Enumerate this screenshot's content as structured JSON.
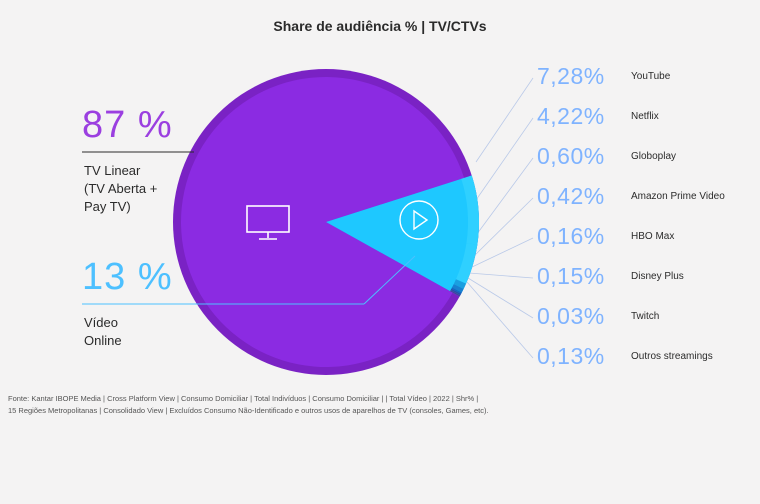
{
  "title": "Share de audiência % | TV/CTVs",
  "linear": {
    "pct_label": "87 %",
    "label_lines": [
      "TV Linear",
      "(TV Aberta +",
      "Pay TV)"
    ]
  },
  "online": {
    "pct_label": "13 %",
    "label_lines": [
      "Vídeo",
      "Online"
    ]
  },
  "services": [
    {
      "pct": "7,28%",
      "name": "YouTube"
    },
    {
      "pct": "4,22%",
      "name": "Netflix"
    },
    {
      "pct": "0,60%",
      "name": "Globoplay"
    },
    {
      "pct": "0,42%",
      "name": "Amazon Prime Video"
    },
    {
      "pct": "0,16%",
      "name": "HBO Max"
    },
    {
      "pct": "0,15%",
      "name": "Disney Plus"
    },
    {
      "pct": "0,03%",
      "name": "Twitch"
    },
    {
      "pct": "0,13%",
      "name": "Outros streamings"
    }
  ],
  "source_lines": [
    "Fonte: Kantar IBOPE Media | Cross Platform View | Consumo Domiciliar | Total Indivíduos | Consumo Domiciliar | | Total Vídeo | 2022 | Shr% |",
    "15 Regiões Metropolitanas | Consolidado View | Excluídos Consumo Não-Identificado e outros usos de aparelhos de TV (consoles, Games, etc)."
  ],
  "colors": {
    "linear": "#8b2be2",
    "online": "#1ec8ff",
    "pct_text": "#7fb3ff",
    "linear_pct": "#9b3fe0",
    "online_pct": "#4dc0ff"
  },
  "icons": {
    "linear": "tv-icon",
    "online": "play-icon"
  },
  "chart_data": {
    "type": "pie",
    "title": "Share de audiência % | TV/CTVs",
    "slices": [
      {
        "name": "TV Linear (TV Aberta + Pay TV)",
        "value": 87
      },
      {
        "name": "Vídeo Online",
        "value": 13
      }
    ],
    "online_breakdown": [
      {
        "name": "YouTube",
        "value": 7.28
      },
      {
        "name": "Netflix",
        "value": 4.22
      },
      {
        "name": "Globoplay",
        "value": 0.6
      },
      {
        "name": "Amazon Prime Video",
        "value": 0.42
      },
      {
        "name": "HBO Max",
        "value": 0.16
      },
      {
        "name": "Disney Plus",
        "value": 0.15
      },
      {
        "name": "Twitch",
        "value": 0.03
      },
      {
        "name": "Outros streamings",
        "value": 0.13
      }
    ]
  }
}
